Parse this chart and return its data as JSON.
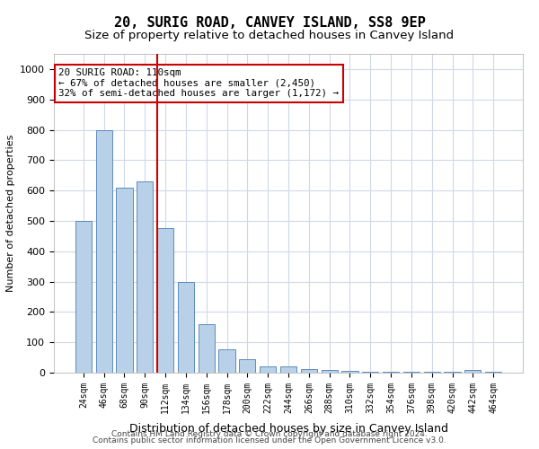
{
  "title1": "20, SURIG ROAD, CANVEY ISLAND, SS8 9EP",
  "title2": "Size of property relative to detached houses in Canvey Island",
  "xlabel": "Distribution of detached houses by size in Canvey Island",
  "ylabel": "Number of detached properties",
  "categories": [
    "24sqm",
    "46sqm",
    "68sqm",
    "90sqm",
    "112sqm",
    "134sqm",
    "156sqm",
    "178sqm",
    "200sqm",
    "222sqm",
    "244sqm",
    "266sqm",
    "288sqm",
    "310sqm",
    "332sqm",
    "354sqm",
    "376sqm",
    "398sqm",
    "420sqm",
    "442sqm",
    "464sqm"
  ],
  "values": [
    500,
    800,
    610,
    630,
    475,
    300,
    160,
    78,
    43,
    22,
    20,
    13,
    10,
    5,
    4,
    4,
    3,
    3,
    2,
    10,
    2
  ],
  "bar_color": "#b8d0e8",
  "bar_edge_color": "#4a7db5",
  "vline_x": 4,
  "vline_color": "#cc0000",
  "annotation_text": "20 SURIG ROAD: 110sqm\n← 67% of detached houses are smaller (2,450)\n32% of semi-detached houses are larger (1,172) →",
  "annotation_box_color": "#ffffff",
  "annotation_box_edge_color": "#cc0000",
  "ylim": [
    0,
    1050
  ],
  "yticks": [
    0,
    100,
    200,
    300,
    400,
    500,
    600,
    700,
    800,
    900,
    1000
  ],
  "footer1": "Contains HM Land Registry data © Crown copyright and database right 2024.",
  "footer2": "Contains public sector information licensed under the Open Government Licence v3.0.",
  "bg_color": "#ffffff",
  "grid_color": "#d0d8e8"
}
